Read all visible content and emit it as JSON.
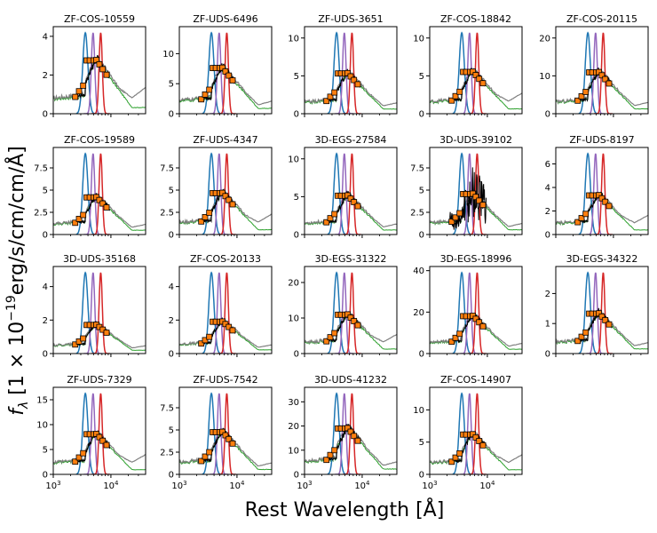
{
  "figure": {
    "xlabel": "Rest Wavelength [Å]",
    "ylabel": "f_λ [1 × 10^−19 erg/s/cm/cm/Å]",
    "ylabel_parts": {
      "f": "f",
      "sub": "λ",
      "pre": " [1 × 10",
      "exp": "−19",
      "post": "erg/s/cm/cm/Å]"
    },
    "x_axis": {
      "scale": "log",
      "range": [
        1000,
        40000
      ],
      "tick_labels": [
        {
          "v": 1000,
          "base": "10",
          "exp": "3"
        },
        {
          "v": 10000,
          "base": "10",
          "exp": "4"
        }
      ]
    }
  },
  "colors": {
    "spectrum": "#000000",
    "model_gray": "#808080",
    "model_green": "#2ca02c",
    "filter_blue": "#1f77b4",
    "filter_purple": "#9467bd",
    "filter_red": "#d62728",
    "photometry_fill": "#ff7f0e",
    "photometry_edge": "#000000"
  },
  "chart_data": [
    {
      "type": "line",
      "title": "ZF-COS-10559",
      "ylim": [
        0,
        4.5
      ],
      "yticks": [
        0,
        2,
        4
      ],
      "peak": 2.9,
      "shape": "std"
    },
    {
      "type": "line",
      "title": "ZF-UDS-6496",
      "ylim": [
        0,
        14.5
      ],
      "yticks": [
        0,
        5,
        10
      ],
      "peak": 8.0,
      "shape": "std"
    },
    {
      "type": "line",
      "title": "ZF-UDS-3651",
      "ylim": [
        0,
        11.5
      ],
      "yticks": [
        0,
        5,
        10
      ],
      "peak": 5.6,
      "shape": "std"
    },
    {
      "type": "line",
      "title": "ZF-COS-18842",
      "ylim": [
        0,
        11.5
      ],
      "yticks": [
        0,
        5,
        10
      ],
      "peak": 5.8,
      "shape": "std"
    },
    {
      "type": "line",
      "title": "ZF-COS-20115",
      "ylim": [
        0,
        23
      ],
      "yticks": [
        0,
        10,
        20
      ],
      "peak": 11.5,
      "shape": "std"
    },
    {
      "type": "line",
      "title": "ZF-COS-19589",
      "ylim": [
        0,
        9.8
      ],
      "yticks": [
        0,
        2.5,
        5,
        7.5
      ],
      "peak": 4.4,
      "shape": "std"
    },
    {
      "type": "line",
      "title": "ZF-UDS-4347",
      "ylim": [
        0,
        9.8
      ],
      "yticks": [
        0,
        2.5,
        5,
        7.5
      ],
      "peak": 4.9,
      "shape": "std"
    },
    {
      "type": "line",
      "title": "3D-EGS-27584",
      "ylim": [
        0,
        11.5
      ],
      "yticks": [
        0,
        5,
        10
      ],
      "peak": 5.4,
      "shape": "std"
    },
    {
      "type": "line",
      "title": "3D-UDS-39102",
      "ylim": [
        0,
        9.8
      ],
      "yticks": [
        0,
        2.5,
        5,
        7.5
      ],
      "peak": 4.8,
      "shape": "noisy"
    },
    {
      "type": "line",
      "title": "ZF-UDS-8197",
      "ylim": [
        0,
        7.4
      ],
      "yticks": [
        0,
        2,
        4,
        6
      ],
      "peak": 3.5,
      "shape": "std"
    },
    {
      "type": "line",
      "title": "3D-UDS-35168",
      "ylim": [
        0,
        5.2
      ],
      "yticks": [
        0,
        2,
        4
      ],
      "peak": 1.8,
      "shape": "std"
    },
    {
      "type": "line",
      "title": "ZF-COS-20133",
      "ylim": [
        0,
        5.2
      ],
      "yticks": [
        0,
        2,
        4
      ],
      "peak": 2.0,
      "shape": "std"
    },
    {
      "type": "line",
      "title": "3D-EGS-31322",
      "ylim": [
        0,
        24.5
      ],
      "yticks": [
        0,
        10,
        20
      ],
      "peak": 11.5,
      "shape": "std"
    },
    {
      "type": "line",
      "title": "3D-EGS-18996",
      "ylim": [
        0,
        42
      ],
      "yticks": [
        0,
        20,
        40
      ],
      "peak": 19,
      "shape": "std"
    },
    {
      "type": "line",
      "title": "3D-EGS-34322",
      "ylim": [
        0,
        2.9
      ],
      "yticks": [
        0,
        1,
        2
      ],
      "peak": 1.4,
      "shape": "std"
    },
    {
      "type": "line",
      "title": "ZF-UDS-7329",
      "ylim": [
        0,
        17.5
      ],
      "yticks": [
        0,
        5,
        10,
        15
      ],
      "peak": 8.5,
      "shape": "std"
    },
    {
      "type": "line",
      "title": "ZF-UDS-7542",
      "ylim": [
        0,
        9.8
      ],
      "yticks": [
        0,
        2.5,
        5,
        7.5
      ],
      "peak": 5.0,
      "shape": "std"
    },
    {
      "type": "line",
      "title": "3D-UDS-41232",
      "ylim": [
        0,
        36
      ],
      "yticks": [
        0,
        10,
        20,
        30
      ],
      "peak": 20,
      "shape": "std"
    },
    {
      "type": "line",
      "title": "ZF-COS-14907",
      "ylim": [
        0,
        13.5
      ],
      "yticks": [
        0,
        5,
        10
      ],
      "peak": 6.5,
      "shape": "std"
    }
  ]
}
